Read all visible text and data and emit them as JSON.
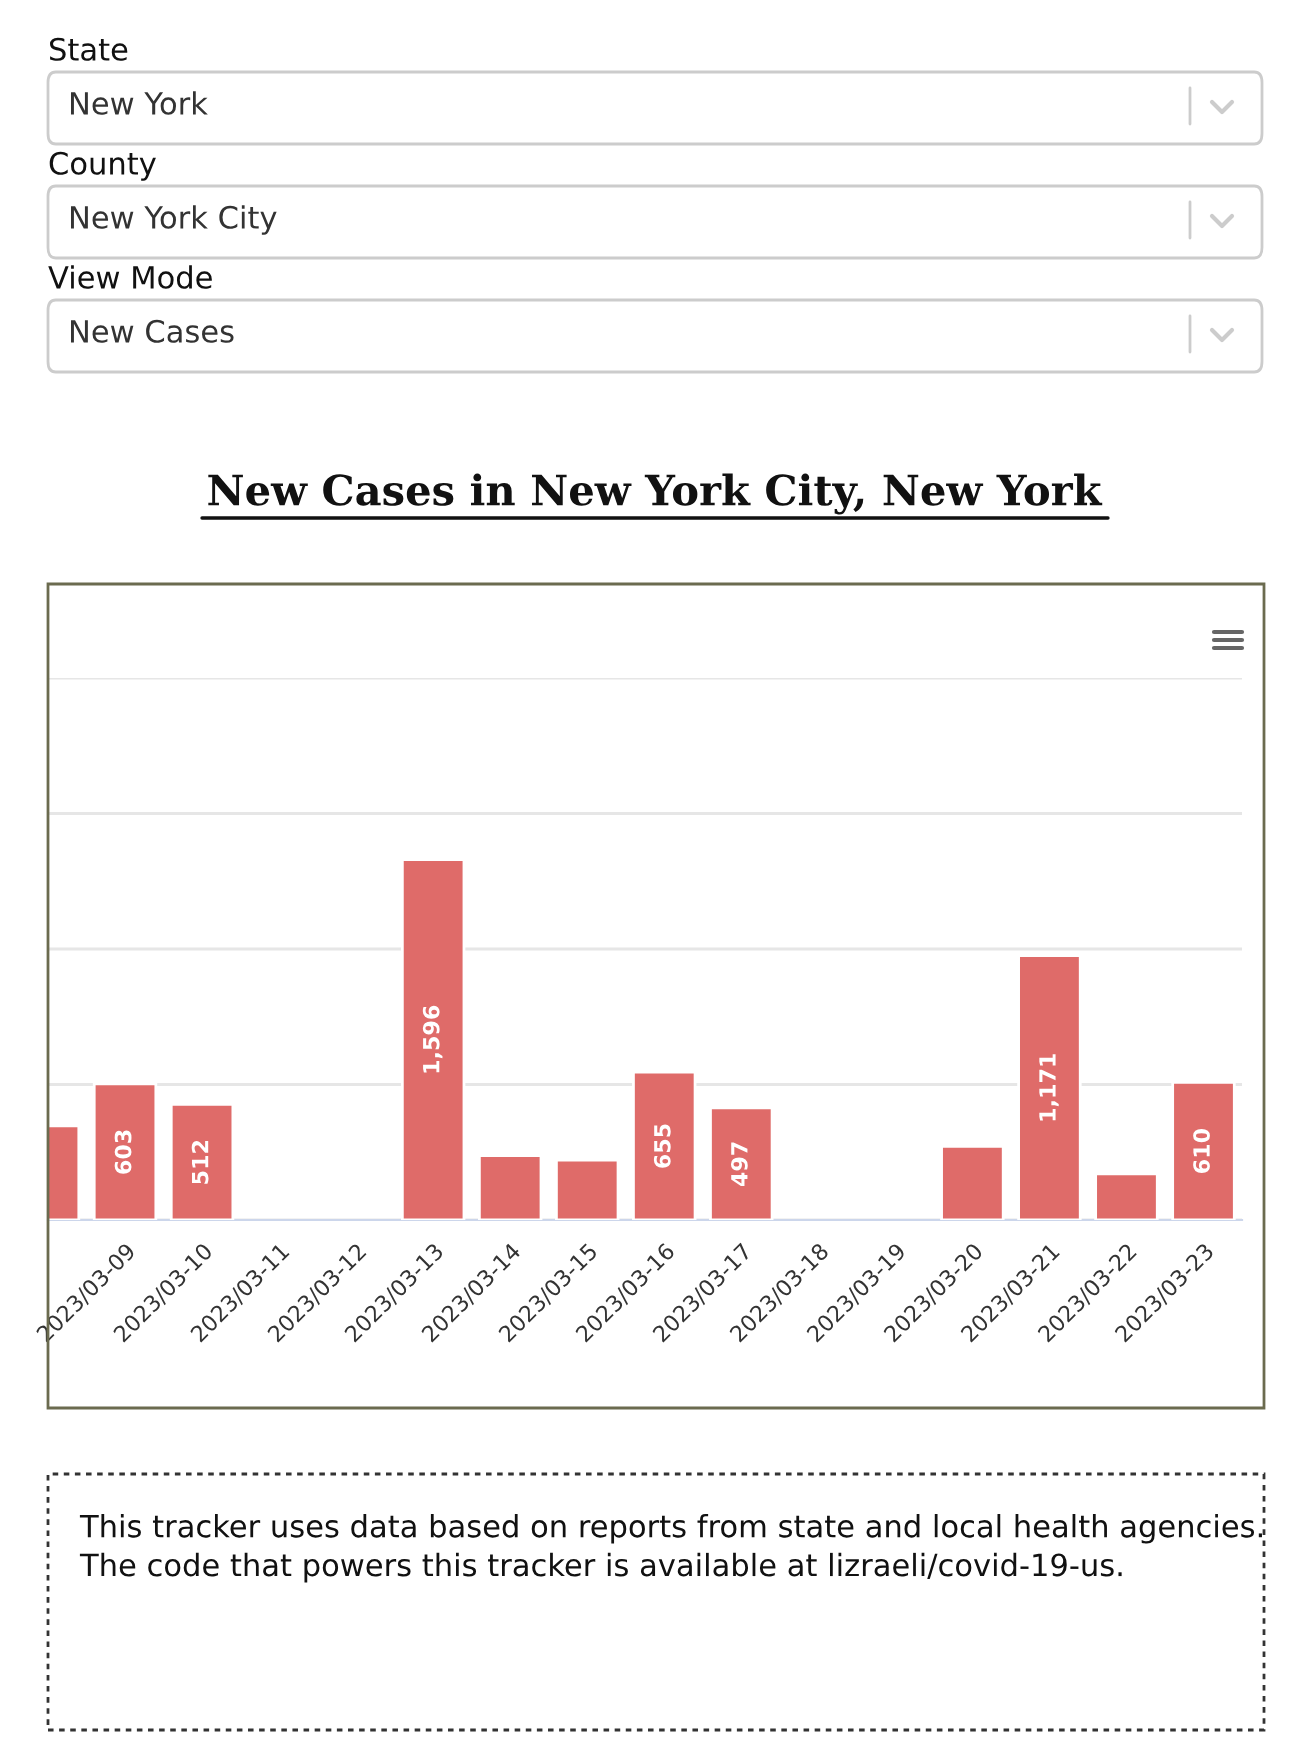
{
  "chart_data": {
    "type": "bar",
    "title": "New Cases in New York City, New York",
    "categories": [
      null,
      "2023/03-09",
      "2023/03-10",
      "2023/03-11",
      "2023/03-12",
      "2023/03-13",
      "2023/03-14",
      "2023/03-15",
      "2023/03-16",
      "2023/03-17",
      "2023/03-18",
      "2023/03-19",
      "2023/03-20",
      "2023/03-21",
      "2023/03-22",
      "2023/03-23"
    ],
    "values": [
      417,
      603,
      512,
      null,
      null,
      1596,
      285,
      265,
      655,
      497,
      null,
      null,
      326,
      1171,
      204,
      610
    ],
    "value_labels": [
      null,
      "603",
      "512",
      null,
      null,
      "1,596",
      null,
      null,
      "655",
      "497",
      null,
      null,
      null,
      "1,171",
      null,
      "610"
    ],
    "color": "#df6b69",
    "ylim": [
      0,
      2400
    ],
    "yticks": [
      {
        "value": 0,
        "label": null
      },
      {
        "value": 600,
        "label": null
      },
      {
        "value": 1200,
        "label": null
      },
      {
        "value": 1800,
        "label": null
      },
      {
        "value": 2400,
        "label": null
      }
    ],
    "grid": "y",
    "legend": false,
    "annotations": [
      "State",
      "New York",
      "County",
      "New York City",
      "View Mode",
      "New Cases",
      "This tracker uses data based on reports from state and local health agencies. The code that powers this tracker is available at lizraeli/covid-19-us."
    ]
  }
}
